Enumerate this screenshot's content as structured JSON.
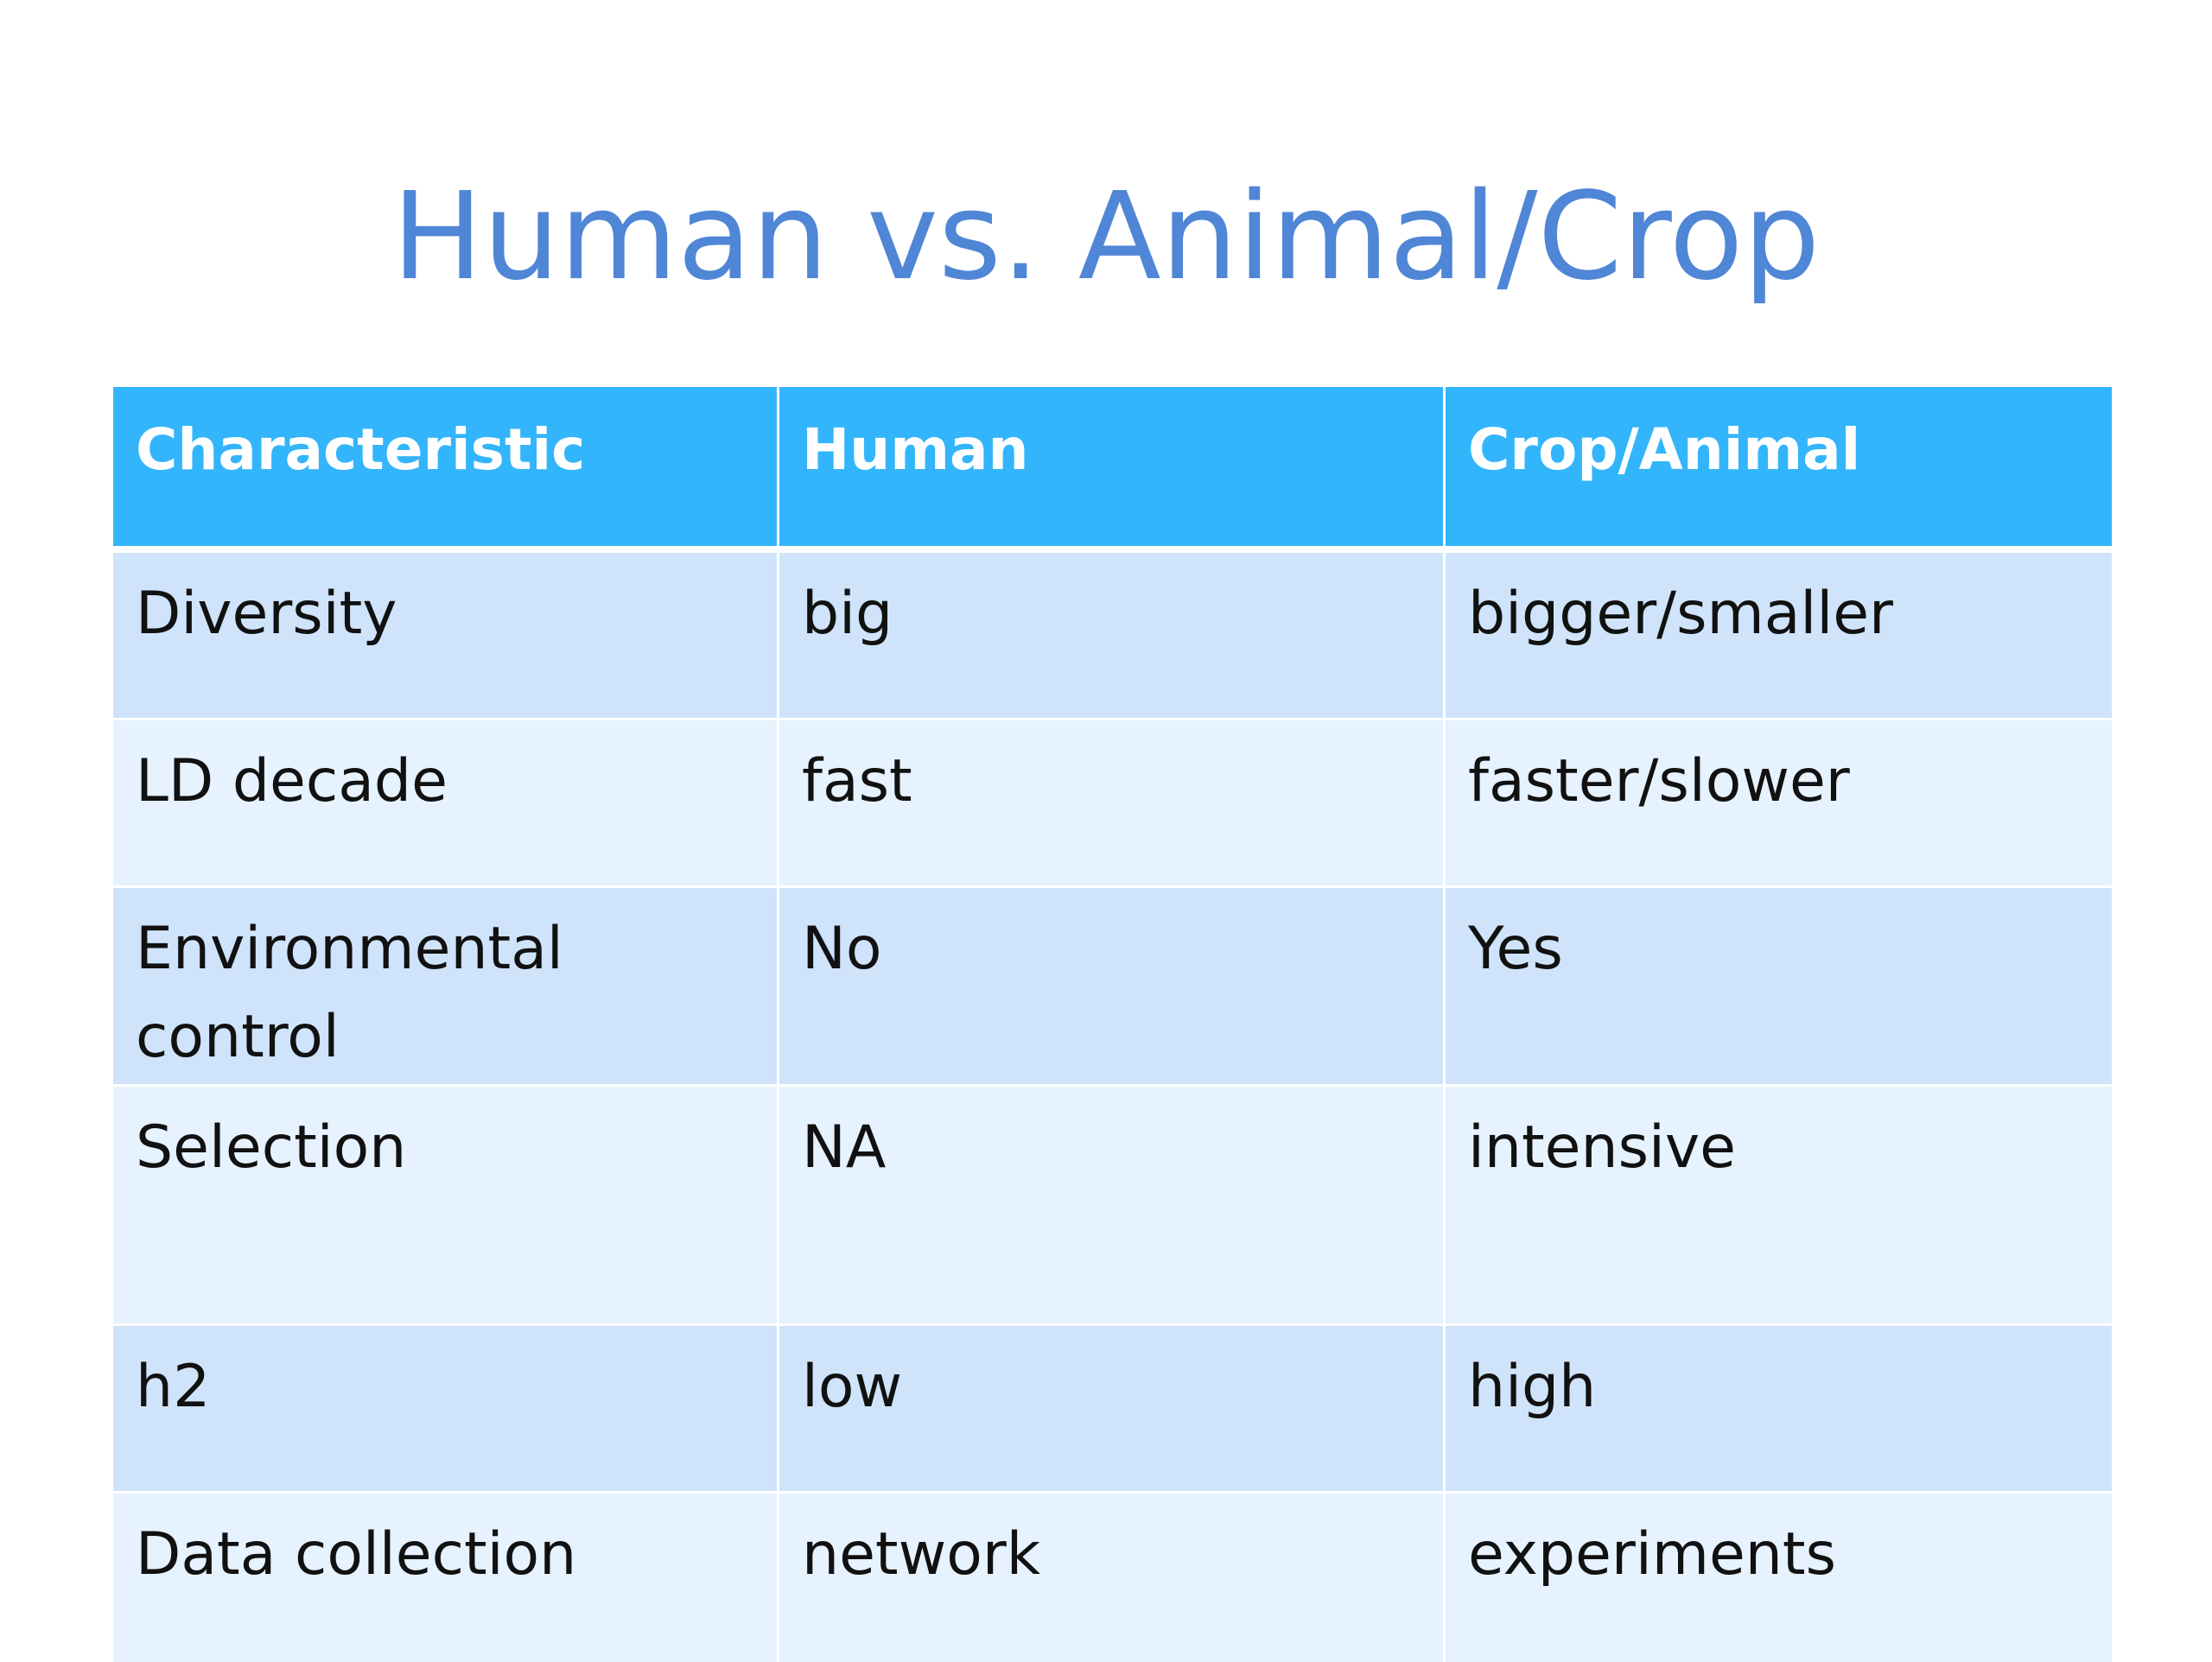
{
  "slide": {
    "title": "Human vs. Animal/Crop"
  },
  "table": {
    "headers": [
      "Characteristic",
      "Human",
      "Crop/Animal"
    ],
    "rows": [
      [
        "Diversity",
        "big",
        "bigger/smaller"
      ],
      [
        "LD decade",
        "fast",
        "faster/slower"
      ],
      [
        "Environmental control",
        "No",
        "Yes"
      ],
      [
        "Selection",
        "NA",
        "intensive"
      ],
      [
        "h2",
        "low",
        "high"
      ],
      [
        "Data collection",
        "network",
        "experiments"
      ]
    ]
  },
  "colors": {
    "title": "#4f86d6",
    "header_bg": "#33b5fb",
    "row_dark": "#cfe4fa",
    "row_light": "#e6f2fd"
  }
}
